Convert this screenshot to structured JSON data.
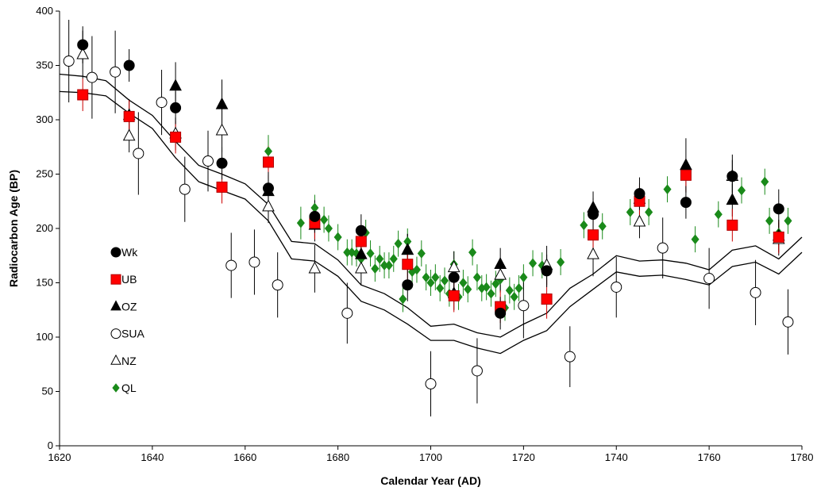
{
  "chart_data": {
    "type": "scatter",
    "title": "",
    "xlabel": "Calendar Year (AD)",
    "ylabel": "Radiocarbon Age (BP)",
    "xlim": [
      1620,
      1780
    ],
    "ylim": [
      0,
      400
    ],
    "x_ticks": [
      1620,
      1640,
      1660,
      1680,
      1700,
      1720,
      1740,
      1760,
      1780
    ],
    "y_ticks": [
      0,
      50,
      100,
      150,
      200,
      250,
      300,
      350,
      400
    ],
    "grid": false,
    "legend_position": "left",
    "error_bars": "vertical",
    "calibration_curve": {
      "upper": [
        [
          1620,
          342
        ],
        [
          1625,
          340
        ],
        [
          1630,
          336
        ],
        [
          1635,
          318
        ],
        [
          1640,
          304
        ],
        [
          1645,
          280
        ],
        [
          1650,
          258
        ],
        [
          1655,
          250
        ],
        [
          1660,
          241
        ],
        [
          1665,
          222
        ],
        [
          1670,
          188
        ],
        [
          1675,
          186
        ],
        [
          1680,
          171
        ],
        [
          1685,
          148
        ],
        [
          1690,
          140
        ],
        [
          1695,
          127
        ],
        [
          1700,
          110
        ],
        [
          1705,
          112
        ],
        [
          1710,
          104
        ],
        [
          1715,
          100
        ],
        [
          1720,
          112
        ],
        [
          1725,
          122
        ],
        [
          1730,
          145
        ],
        [
          1735,
          158
        ],
        [
          1740,
          175
        ],
        [
          1745,
          170
        ],
        [
          1750,
          171
        ],
        [
          1755,
          168
        ],
        [
          1760,
          162
        ],
        [
          1765,
          180
        ],
        [
          1770,
          184
        ],
        [
          1775,
          172
        ],
        [
          1780,
          192
        ]
      ],
      "lower": [
        [
          1620,
          326
        ],
        [
          1625,
          325
        ],
        [
          1630,
          322
        ],
        [
          1635,
          306
        ],
        [
          1640,
          292
        ],
        [
          1645,
          265
        ],
        [
          1650,
          243
        ],
        [
          1655,
          235
        ],
        [
          1660,
          227
        ],
        [
          1665,
          207
        ],
        [
          1670,
          172
        ],
        [
          1675,
          170
        ],
        [
          1680,
          156
        ],
        [
          1685,
          133
        ],
        [
          1690,
          125
        ],
        [
          1695,
          112
        ],
        [
          1700,
          97
        ],
        [
          1705,
          97
        ],
        [
          1710,
          90
        ],
        [
          1715,
          85
        ],
        [
          1720,
          97
        ],
        [
          1725,
          106
        ],
        [
          1730,
          128
        ],
        [
          1735,
          144
        ],
        [
          1740,
          160
        ],
        [
          1745,
          156
        ],
        [
          1750,
          157
        ],
        [
          1755,
          153
        ],
        [
          1760,
          148
        ],
        [
          1765,
          165
        ],
        [
          1770,
          169
        ],
        [
          1775,
          158
        ],
        [
          1780,
          178
        ]
      ]
    },
    "series": [
      {
        "name": "Wk",
        "marker": "circle",
        "fill": "#000000",
        "stroke": "#000000",
        "points": [
          [
            1625,
            369,
            17
          ],
          [
            1635,
            350,
            15
          ],
          [
            1645,
            311,
            15
          ],
          [
            1655,
            260,
            15
          ],
          [
            1665,
            237,
            15
          ],
          [
            1675,
            211,
            15
          ],
          [
            1685,
            198,
            15
          ],
          [
            1695,
            148,
            15
          ],
          [
            1705,
            155,
            15
          ],
          [
            1715,
            122,
            15
          ],
          [
            1725,
            161,
            15
          ],
          [
            1735,
            213,
            15
          ],
          [
            1745,
            232,
            15
          ],
          [
            1755,
            224,
            15
          ],
          [
            1765,
            248,
            20
          ],
          [
            1775,
            218,
            18
          ]
        ]
      },
      {
        "name": "UB",
        "marker": "square",
        "fill": "#ff0000",
        "stroke": "#b00000",
        "points": [
          [
            1625,
            323,
            15
          ],
          [
            1635,
            303,
            15
          ],
          [
            1645,
            284,
            15
          ],
          [
            1655,
            238,
            15
          ],
          [
            1665,
            261,
            15
          ],
          [
            1675,
            205,
            15
          ],
          [
            1685,
            188,
            15
          ],
          [
            1695,
            167,
            15
          ],
          [
            1705,
            138,
            15
          ],
          [
            1715,
            128,
            15
          ],
          [
            1725,
            135,
            18
          ],
          [
            1735,
            194,
            15
          ],
          [
            1745,
            225,
            15
          ],
          [
            1755,
            249,
            15
          ],
          [
            1765,
            203,
            15
          ],
          [
            1775,
            192,
            15
          ]
        ]
      },
      {
        "name": "OZ",
        "marker": "triangle",
        "fill": "#000000",
        "stroke": "#000000",
        "points": [
          [
            1635,
            304,
            15
          ],
          [
            1645,
            331,
            22
          ],
          [
            1655,
            314,
            23
          ],
          [
            1665,
            234,
            15
          ],
          [
            1675,
            203,
            15
          ],
          [
            1685,
            176,
            15
          ],
          [
            1695,
            180,
            15
          ],
          [
            1705,
            140,
            15
          ],
          [
            1715,
            167,
            15
          ],
          [
            1735,
            219,
            15
          ],
          [
            1745,
            227,
            15
          ],
          [
            1755,
            258,
            25
          ],
          [
            1765,
            226,
            15
          ],
          [
            1775,
            193,
            15
          ]
        ]
      },
      {
        "name": "SUA",
        "marker": "circle",
        "fill": "#ffffff",
        "stroke": "#000000",
        "points": [
          [
            1622,
            354,
            38
          ],
          [
            1627,
            339,
            38
          ],
          [
            1632,
            344,
            38
          ],
          [
            1637,
            269,
            38
          ],
          [
            1642,
            316,
            30
          ],
          [
            1647,
            236,
            30
          ],
          [
            1652,
            262,
            28
          ],
          [
            1657,
            166,
            30
          ],
          [
            1662,
            169,
            30
          ],
          [
            1667,
            148,
            30
          ],
          [
            1682,
            122,
            28
          ],
          [
            1700,
            57,
            30
          ],
          [
            1710,
            69,
            30
          ],
          [
            1720,
            129,
            30
          ],
          [
            1730,
            82,
            28
          ],
          [
            1740,
            146,
            28
          ],
          [
            1750,
            182,
            28
          ],
          [
            1760,
            154,
            28
          ],
          [
            1770,
            141,
            30
          ],
          [
            1777,
            114,
            30
          ]
        ]
      },
      {
        "name": "NZ",
        "marker": "triangle",
        "fill": "#ffffff",
        "stroke": "#000000",
        "points": [
          [
            1625,
            360,
            22
          ],
          [
            1635,
            285,
            15
          ],
          [
            1645,
            287,
            15
          ],
          [
            1655,
            290,
            20
          ],
          [
            1665,
            220,
            15
          ],
          [
            1675,
            163,
            22
          ],
          [
            1685,
            163,
            15
          ],
          [
            1695,
            180,
            15
          ],
          [
            1705,
            164,
            15
          ],
          [
            1715,
            157,
            15
          ],
          [
            1725,
            166,
            18
          ],
          [
            1735,
            176,
            20
          ],
          [
            1745,
            206,
            15
          ],
          [
            1765,
            248,
            15
          ],
          [
            1775,
            190,
            15
          ]
        ]
      },
      {
        "name": "QL",
        "marker": "diamond",
        "fill": "#1a8a1a",
        "stroke": "#1a8a1a",
        "points": [
          [
            1665,
            271,
            15
          ],
          [
            1672,
            205,
            15
          ],
          [
            1675,
            219,
            12
          ],
          [
            1677,
            208,
            12
          ],
          [
            1678,
            200,
            12
          ],
          [
            1680,
            192,
            12
          ],
          [
            1682,
            178,
            12
          ],
          [
            1683,
            178,
            12
          ],
          [
            1684,
            177,
            12
          ],
          [
            1685,
            172,
            12
          ],
          [
            1686,
            196,
            12
          ],
          [
            1687,
            177,
            12
          ],
          [
            1688,
            163,
            12
          ],
          [
            1689,
            172,
            12
          ],
          [
            1690,
            166,
            12
          ],
          [
            1691,
            166,
            12
          ],
          [
            1692,
            172,
            12
          ],
          [
            1693,
            186,
            12
          ],
          [
            1694,
            135,
            12
          ],
          [
            1695,
            188,
            12
          ],
          [
            1696,
            160,
            12
          ],
          [
            1697,
            162,
            12
          ],
          [
            1698,
            177,
            12
          ],
          [
            1699,
            155,
            12
          ],
          [
            1700,
            150,
            12
          ],
          [
            1701,
            155,
            12
          ],
          [
            1702,
            145,
            12
          ],
          [
            1703,
            152,
            12
          ],
          [
            1704,
            140,
            12
          ],
          [
            1705,
            167,
            12
          ],
          [
            1706,
            137,
            12
          ],
          [
            1707,
            150,
            12
          ],
          [
            1708,
            144,
            12
          ],
          [
            1709,
            178,
            12
          ],
          [
            1710,
            155,
            12
          ],
          [
            1711,
            145,
            12
          ],
          [
            1712,
            146,
            12
          ],
          [
            1713,
            140,
            12
          ],
          [
            1714,
            149,
            12
          ],
          [
            1715,
            153,
            12
          ],
          [
            1716,
            127,
            12
          ],
          [
            1717,
            143,
            12
          ],
          [
            1718,
            137,
            12
          ],
          [
            1719,
            145,
            12
          ],
          [
            1720,
            155,
            12
          ],
          [
            1722,
            168,
            12
          ],
          [
            1724,
            166,
            12
          ],
          [
            1728,
            169,
            12
          ],
          [
            1733,
            203,
            12
          ],
          [
            1737,
            202,
            12
          ],
          [
            1743,
            215,
            12
          ],
          [
            1747,
            215,
            12
          ],
          [
            1751,
            236,
            12
          ],
          [
            1757,
            190,
            12
          ],
          [
            1762,
            213,
            12
          ],
          [
            1767,
            235,
            12
          ],
          [
            1772,
            243,
            12
          ],
          [
            1773,
            207,
            12
          ],
          [
            1775,
            196,
            12
          ],
          [
            1777,
            207,
            12
          ]
        ]
      }
    ]
  }
}
